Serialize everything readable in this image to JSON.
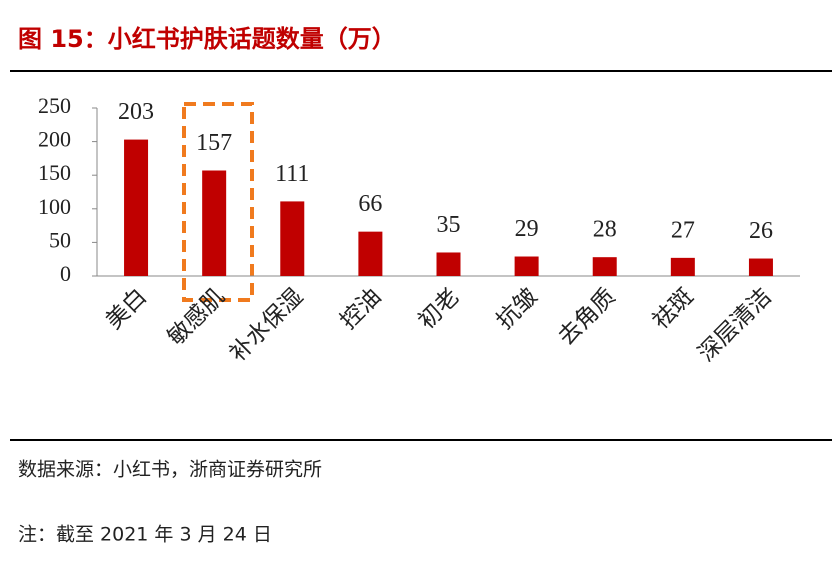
{
  "chart_data": {
    "type": "bar",
    "title": "图 15：小红书护肤话题数量（万）",
    "categories": [
      "美白",
      "敏感肌",
      "补水保湿",
      "控油",
      "初老",
      "抗皱",
      "去角质",
      "祛斑",
      "深层清洁"
    ],
    "values": [
      203,
      157,
      111,
      66,
      35,
      29,
      28,
      27,
      26
    ],
    "color": "#c00000",
    "ylim": [
      0,
      250
    ],
    "yticks": [
      0,
      50,
      100,
      150,
      200,
      250
    ],
    "source": "数据来源：小红书，浙商证券研究所",
    "note": "注：截至 2021 年 3 月 24 日"
  }
}
